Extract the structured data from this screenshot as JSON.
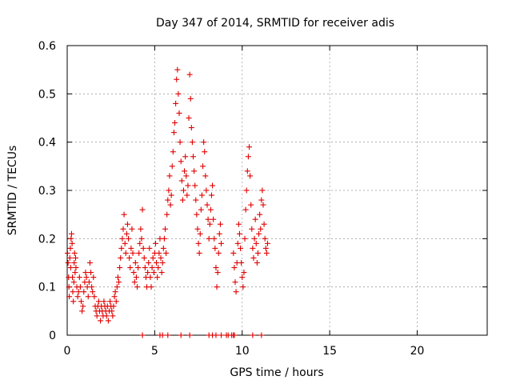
{
  "chart_data": {
    "type": "scatter",
    "title": "Day 347 of 2014, SRMTID for receiver adis",
    "xlabel": "GPS time / hours",
    "ylabel": "SRMTID / TECUs",
    "xlim": [
      0,
      24
    ],
    "ylim": [
      0,
      0.6
    ],
    "xticks": [
      0,
      5,
      10,
      15,
      20
    ],
    "yticks": [
      0,
      0.1,
      0.2,
      0.3,
      0.4,
      0.5,
      0.6
    ],
    "xtick_labels": [
      "0",
      "5",
      "10",
      "15",
      "20"
    ],
    "ytick_labels": [
      "0",
      "0.1",
      "0.2",
      "0.3",
      "0.4",
      "0.5",
      "0.6"
    ],
    "grid": true,
    "marker": "plus",
    "color": "#e00000",
    "series": [
      {
        "name": "SRMTID",
        "points": [
          [
            0.02,
            0.17
          ],
          [
            0.05,
            0.15
          ],
          [
            0.08,
            0.12
          ],
          [
            0.1,
            0.1
          ],
          [
            0.12,
            0.08
          ],
          [
            0.15,
            0.16
          ],
          [
            0.18,
            0.18
          ],
          [
            0.2,
            0.14
          ],
          [
            0.22,
            0.2
          ],
          [
            0.25,
            0.21
          ],
          [
            0.28,
            0.19
          ],
          [
            0.3,
            0.12
          ],
          [
            0.32,
            0.09
          ],
          [
            0.35,
            0.07
          ],
          [
            0.38,
            0.11
          ],
          [
            0.4,
            0.15
          ],
          [
            0.42,
            0.17
          ],
          [
            0.45,
            0.13
          ],
          [
            0.48,
            0.16
          ],
          [
            0.5,
            0.14
          ],
          [
            0.55,
            0.1
          ],
          [
            0.6,
            0.08
          ],
          [
            0.65,
            0.09
          ],
          [
            0.7,
            0.12
          ],
          [
            0.75,
            0.1
          ],
          [
            0.8,
            0.07
          ],
          [
            0.85,
            0.05
          ],
          [
            0.9,
            0.06
          ],
          [
            0.95,
            0.09
          ],
          [
            1.0,
            0.11
          ],
          [
            1.05,
            0.13
          ],
          [
            1.1,
            0.12
          ],
          [
            1.15,
            0.1
          ],
          [
            1.2,
            0.08
          ],
          [
            1.25,
            0.11
          ],
          [
            1.3,
            0.15
          ],
          [
            1.35,
            0.13
          ],
          [
            1.4,
            0.1
          ],
          [
            1.45,
            0.09
          ],
          [
            1.5,
            0.12
          ],
          [
            1.55,
            0.08
          ],
          [
            1.6,
            0.06
          ],
          [
            1.65,
            0.05
          ],
          [
            1.7,
            0.04
          ],
          [
            1.75,
            0.06
          ],
          [
            1.8,
            0.07
          ],
          [
            1.85,
            0.05
          ],
          [
            1.9,
            0.03
          ],
          [
            1.95,
            0.06
          ],
          [
            2.0,
            0.05
          ],
          [
            2.05,
            0.04
          ],
          [
            2.1,
            0.07
          ],
          [
            2.15,
            0.06
          ],
          [
            2.2,
            0.05
          ],
          [
            2.25,
            0.04
          ],
          [
            2.3,
            0.06
          ],
          [
            2.35,
            0.03
          ],
          [
            2.4,
            0.05
          ],
          [
            2.45,
            0.07
          ],
          [
            2.5,
            0.06
          ],
          [
            2.55,
            0.05
          ],
          [
            2.6,
            0.04
          ],
          [
            2.65,
            0.06
          ],
          [
            2.7,
            0.08
          ],
          [
            2.75,
            0.09
          ],
          [
            2.8,
            0.07
          ],
          [
            2.85,
            0.1
          ],
          [
            2.9,
            0.12
          ],
          [
            2.95,
            0.11
          ],
          [
            3.0,
            0.14
          ],
          [
            3.05,
            0.16
          ],
          [
            3.1,
            0.18
          ],
          [
            3.15,
            0.2
          ],
          [
            3.2,
            0.22
          ],
          [
            3.25,
            0.25
          ],
          [
            3.3,
            0.19
          ],
          [
            3.35,
            0.17
          ],
          [
            3.4,
            0.21
          ],
          [
            3.45,
            0.23
          ],
          [
            3.5,
            0.2
          ],
          [
            3.55,
            0.16
          ],
          [
            3.6,
            0.14
          ],
          [
            3.65,
            0.18
          ],
          [
            3.7,
            0.22
          ],
          [
            3.75,
            0.17
          ],
          [
            3.8,
            0.13
          ],
          [
            3.85,
            0.11
          ],
          [
            3.9,
            0.15
          ],
          [
            3.95,
            0.12
          ],
          [
            4.0,
            0.1
          ],
          [
            4.05,
            0.14
          ],
          [
            4.1,
            0.17
          ],
          [
            4.15,
            0.19
          ],
          [
            4.2,
            0.22
          ],
          [
            4.25,
            0.2
          ],
          [
            4.3,
            0.26
          ],
          [
            4.35,
            0.18
          ],
          [
            4.4,
            0.16
          ],
          [
            4.45,
            0.14
          ],
          [
            4.5,
            0.12
          ],
          [
            4.55,
            0.1
          ],
          [
            4.6,
            0.13
          ],
          [
            4.65,
            0.15
          ],
          [
            4.7,
            0.18
          ],
          [
            4.75,
            0.12
          ],
          [
            4.8,
            0.1
          ],
          [
            4.85,
            0.14
          ],
          [
            4.9,
            0.16
          ],
          [
            4.95,
            0.13
          ],
          [
            5.0,
            0.17
          ],
          [
            5.05,
            0.19
          ],
          [
            5.1,
            0.15
          ],
          [
            5.15,
            0.12
          ],
          [
            5.2,
            0.14
          ],
          [
            5.25,
            0.17
          ],
          [
            5.3,
            0.2
          ],
          [
            5.35,
            0.16
          ],
          [
            5.4,
            0.13
          ],
          [
            5.45,
            0.15
          ],
          [
            5.5,
            0.18
          ],
          [
            5.55,
            0.2
          ],
          [
            5.6,
            0.22
          ],
          [
            5.65,
            0.17
          ],
          [
            5.7,
            0.25
          ],
          [
            5.75,
            0.28
          ],
          [
            5.8,
            0.3
          ],
          [
            5.85,
            0.33
          ],
          [
            5.9,
            0.27
          ],
          [
            5.95,
            0.29
          ],
          [
            6.0,
            0.35
          ],
          [
            6.05,
            0.38
          ],
          [
            6.1,
            0.42
          ],
          [
            6.15,
            0.44
          ],
          [
            6.2,
            0.48
          ],
          [
            6.25,
            0.53
          ],
          [
            6.3,
            0.55
          ],
          [
            6.35,
            0.5
          ],
          [
            6.4,
            0.46
          ],
          [
            6.45,
            0.4
          ],
          [
            6.5,
            0.36
          ],
          [
            6.55,
            0.32
          ],
          [
            6.6,
            0.28
          ],
          [
            6.65,
            0.3
          ],
          [
            6.7,
            0.34
          ],
          [
            6.75,
            0.37
          ],
          [
            6.8,
            0.33
          ],
          [
            6.85,
            0.29
          ],
          [
            6.9,
            0.31
          ],
          [
            6.95,
            0.45
          ],
          [
            7.0,
            0.54
          ],
          [
            7.05,
            0.49
          ],
          [
            7.1,
            0.43
          ],
          [
            7.15,
            0.4
          ],
          [
            7.2,
            0.37
          ],
          [
            7.25,
            0.34
          ],
          [
            7.3,
            0.31
          ],
          [
            7.35,
            0.28
          ],
          [
            7.4,
            0.25
          ],
          [
            7.45,
            0.22
          ],
          [
            7.5,
            0.19
          ],
          [
            7.55,
            0.17
          ],
          [
            7.6,
            0.21
          ],
          [
            7.65,
            0.26
          ],
          [
            7.7,
            0.29
          ],
          [
            7.75,
            0.35
          ],
          [
            7.8,
            0.4
          ],
          [
            7.85,
            0.38
          ],
          [
            7.9,
            0.33
          ],
          [
            7.95,
            0.3
          ],
          [
            8.0,
            0.27
          ],
          [
            8.05,
            0.24
          ],
          [
            8.1,
            0.2
          ],
          [
            8.15,
            0.23
          ],
          [
            8.2,
            0.26
          ],
          [
            8.25,
            0.29
          ],
          [
            8.3,
            0.31
          ],
          [
            8.35,
            0.24
          ],
          [
            8.4,
            0.2
          ],
          [
            8.45,
            0.18
          ],
          [
            8.5,
            0.14
          ],
          [
            8.55,
            0.1
          ],
          [
            8.6,
            0.13
          ],
          [
            8.65,
            0.17
          ],
          [
            8.7,
            0.21
          ],
          [
            8.75,
            0.23
          ],
          [
            8.8,
            0.19
          ],
          [
            9.5,
            0.17
          ],
          [
            9.55,
            0.14
          ],
          [
            9.6,
            0.11
          ],
          [
            9.65,
            0.09
          ],
          [
            9.7,
            0.15
          ],
          [
            9.75,
            0.19
          ],
          [
            9.8,
            0.23
          ],
          [
            9.85,
            0.21
          ],
          [
            9.9,
            0.18
          ],
          [
            9.95,
            0.15
          ],
          [
            10.0,
            0.12
          ],
          [
            10.05,
            0.1
          ],
          [
            10.1,
            0.13
          ],
          [
            10.15,
            0.2
          ],
          [
            10.2,
            0.26
          ],
          [
            10.25,
            0.3
          ],
          [
            10.3,
            0.34
          ],
          [
            10.35,
            0.37
          ],
          [
            10.4,
            0.39
          ],
          [
            10.45,
            0.33
          ],
          [
            10.5,
            0.27
          ],
          [
            10.55,
            0.22
          ],
          [
            10.6,
            0.18
          ],
          [
            10.65,
            0.16
          ],
          [
            10.7,
            0.2
          ],
          [
            10.75,
            0.24
          ],
          [
            10.8,
            0.19
          ],
          [
            10.85,
            0.15
          ],
          [
            10.9,
            0.17
          ],
          [
            10.95,
            0.21
          ],
          [
            11.0,
            0.25
          ],
          [
            11.05,
            0.22
          ],
          [
            11.1,
            0.28
          ],
          [
            11.15,
            0.3
          ],
          [
            11.2,
            0.27
          ],
          [
            11.25,
            0.23
          ],
          [
            11.3,
            0.2
          ],
          [
            11.35,
            0.18
          ],
          [
            11.4,
            0.17
          ],
          [
            11.45,
            0.19
          ],
          [
            4.3,
            0.0
          ],
          [
            5.3,
            0.0
          ],
          [
            5.45,
            0.0
          ],
          [
            5.75,
            0.0
          ],
          [
            6.5,
            0.0
          ],
          [
            7.0,
            0.0
          ],
          [
            8.1,
            0.0
          ],
          [
            8.3,
            0.0
          ],
          [
            8.5,
            0.0
          ],
          [
            8.8,
            0.0
          ],
          [
            9.1,
            0.0
          ],
          [
            9.2,
            0.0
          ],
          [
            9.4,
            0.0
          ],
          [
            9.5,
            0.0
          ],
          [
            9.55,
            0.0
          ],
          [
            10.6,
            0.0
          ],
          [
            11.1,
            0.0
          ]
        ]
      }
    ]
  }
}
